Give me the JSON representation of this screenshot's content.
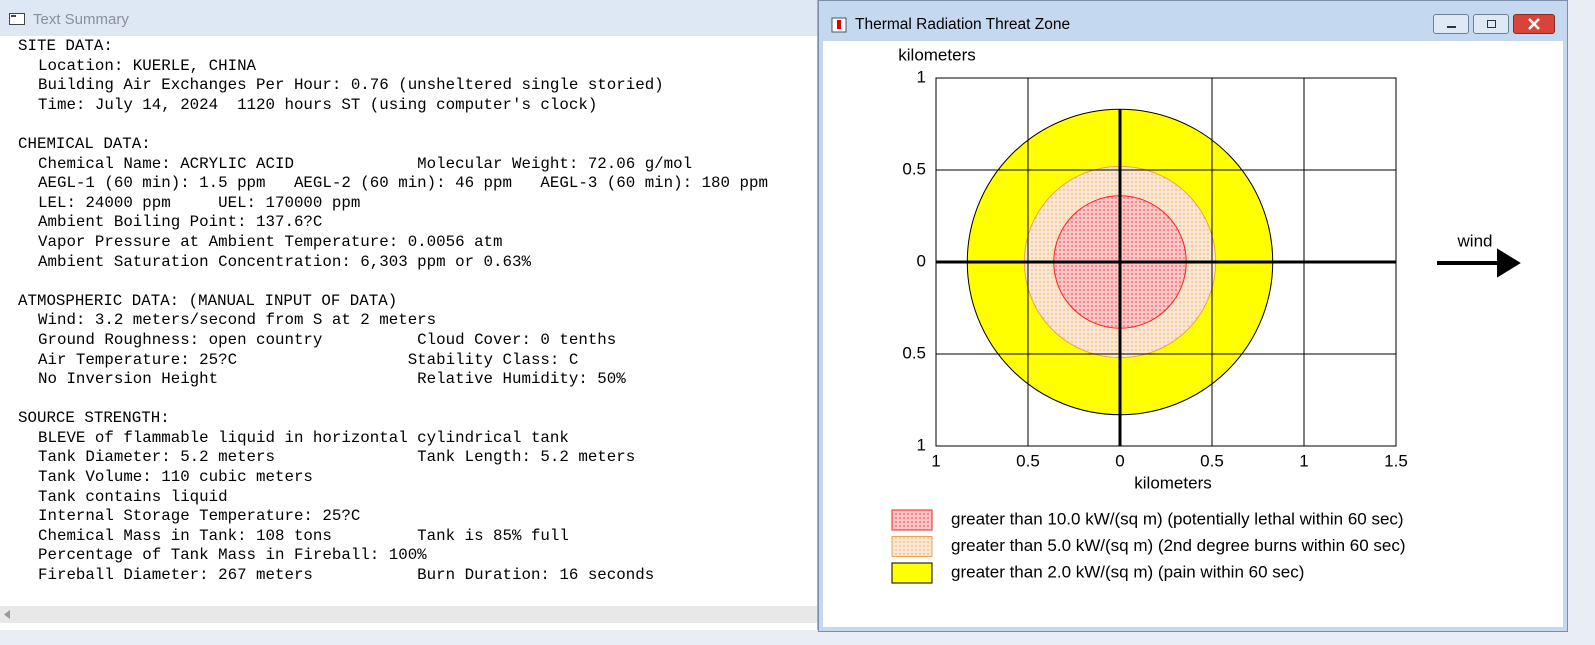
{
  "text_window": {
    "title": "Text Summary",
    "sections": [
      {
        "heading": "SITE DATA:",
        "lines": [
          "Location: KUERLE, CHINA",
          "Building Air Exchanges Per Hour: 0.76 (unsheltered single storied)",
          "Time: July 14, 2024  1120 hours ST (using computer's clock)"
        ]
      },
      {
        "heading": "CHEMICAL DATA:",
        "lines": [
          "Chemical Name: ACRYLIC ACID             Molecular Weight: 72.06 g/mol",
          "AEGL-1 (60 min): 1.5 ppm   AEGL-2 (60 min): 46 ppm   AEGL-3 (60 min): 180 ppm",
          "LEL: 24000 ppm     UEL: 170000 ppm",
          "Ambient Boiling Point: 137.6?C",
          "Vapor Pressure at Ambient Temperature: 0.0056 atm",
          "Ambient Saturation Concentration: 6,303 ppm or 0.63%"
        ]
      },
      {
        "heading": "ATMOSPHERIC DATA: (MANUAL INPUT OF DATA)",
        "lines": [
          "Wind: 3.2 meters/second from S at 2 meters",
          "Ground Roughness: open country          Cloud Cover: 0 tenths",
          "Air Temperature: 25?C                  Stability Class: C",
          "No Inversion Height                     Relative Humidity: 50%"
        ]
      },
      {
        "heading": "SOURCE STRENGTH:",
        "lines": [
          "BLEVE of flammable liquid in horizontal cylindrical tank",
          "Tank Diameter: 5.2 meters               Tank Length: 5.2 meters",
          "Tank Volume: 110 cubic meters",
          "Tank contains liquid",
          "Internal Storage Temperature: 25?C",
          "Chemical Mass in Tank: 108 tons         Tank is 85% full",
          "Percentage of Tank Mass in Fireball: 100%",
          "Fireball Diameter: 267 meters           Burn Duration: 16 seconds"
        ]
      }
    ]
  },
  "chart_window": {
    "title": "Thermal Radiation Threat Zone",
    "chart_data": {
      "type": "zone",
      "x_label": "kilometers",
      "y_label": "kilometers",
      "annotation": "wind",
      "xlim": [
        -1,
        1.5
      ],
      "ylim": [
        -1,
        1
      ],
      "xticks": [
        {
          "value": -1,
          "label": "1"
        },
        {
          "value": -0.5,
          "label": "0.5"
        },
        0,
        0.5,
        1,
        1.5
      ],
      "yticks": [
        {
          "value": -1,
          "label": "1"
        },
        {
          "value": -0.5,
          "label": "0.5"
        },
        0,
        0.5,
        1
      ],
      "grid": true,
      "series": [
        {
          "name": "greater than 10.0 kW/(sq m) (potentially lethal within 60 sec)",
          "color": "#ff2020",
          "pattern": "dotted",
          "radius": 0.36
        },
        {
          "name": "greater than 5.0 kW/(sq m) (2nd degree burns within 60 sec)",
          "color": "#f0a050",
          "pattern": "dotted",
          "radius": 0.52
        },
        {
          "name": "greater than 2.0 kW/(sq m) (pain within 60 sec)",
          "color": "#ffff00",
          "pattern": "solid",
          "radius": 0.83
        }
      ]
    }
  }
}
